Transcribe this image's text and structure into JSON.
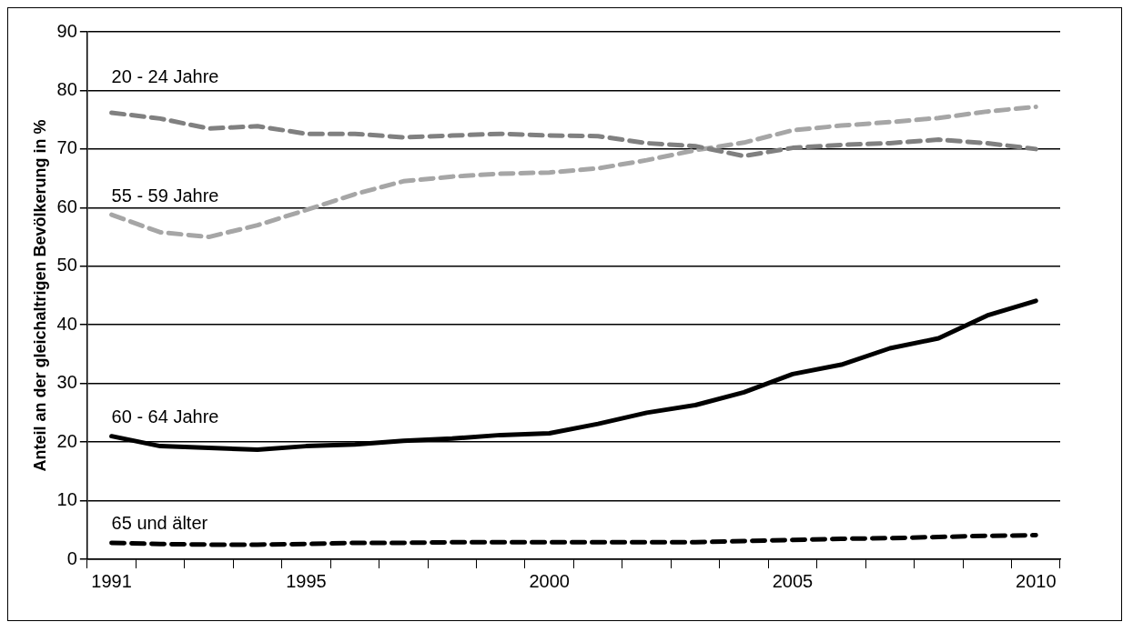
{
  "chart_data": {
    "type": "line",
    "ylabel": "Anteil an der gleichaltrigen Bevölkerung in %",
    "categories": [
      "1991",
      null,
      null,
      null,
      "1995",
      null,
      null,
      null,
      null,
      "2000",
      null,
      null,
      null,
      null,
      "2005",
      null,
      null,
      null,
      null,
      "2010"
    ],
    "ylim": [
      0,
      90
    ],
    "yticks": [
      0,
      10,
      20,
      30,
      40,
      50,
      60,
      70,
      80,
      90
    ],
    "grid": "y",
    "legend": false,
    "marker": "none",
    "series": [
      {
        "name": "20 - 24 Jahre",
        "color": "#808080",
        "line_style": "dashed",
        "values": [
          76.2,
          75.2,
          73.5,
          73.9,
          72.6,
          72.6,
          72,
          72.3,
          72.6,
          72.3,
          72.2,
          71,
          70.5,
          68.8,
          70.2,
          70.7,
          71,
          71.6,
          71,
          70
        ]
      },
      {
        "name": "55 - 59 Jahre",
        "color": "#a6a6a6",
        "line_style": "dashed",
        "values": [
          58.8,
          55.8,
          55,
          57,
          59.6,
          62.3,
          64.5,
          65.3,
          65.8,
          66,
          66.7,
          68.1,
          69.8,
          71.1,
          73.2,
          74,
          74.6,
          75.3,
          76.4,
          77.2
        ]
      },
      {
        "name": "60 - 64 Jahre",
        "color": "#000000",
        "line_style": "solid",
        "values": [
          21,
          19.3,
          19,
          18.7,
          19.3,
          19.6,
          20.2,
          20.6,
          21.2,
          21.5,
          23.1,
          25,
          26.3,
          28.5,
          31.6,
          33.2,
          36,
          37.7,
          41.6,
          44.1
        ]
      },
      {
        "name": "65 und älter",
        "color": "#000000",
        "line_style": "dashed",
        "values": [
          2.8,
          2.6,
          2.5,
          2.5,
          2.6,
          2.8,
          2.8,
          2.9,
          2.9,
          2.9,
          2.9,
          2.9,
          2.9,
          3.1,
          3.3,
          3.5,
          3.6,
          3.8,
          4.0,
          4.1
        ]
      }
    ]
  }
}
